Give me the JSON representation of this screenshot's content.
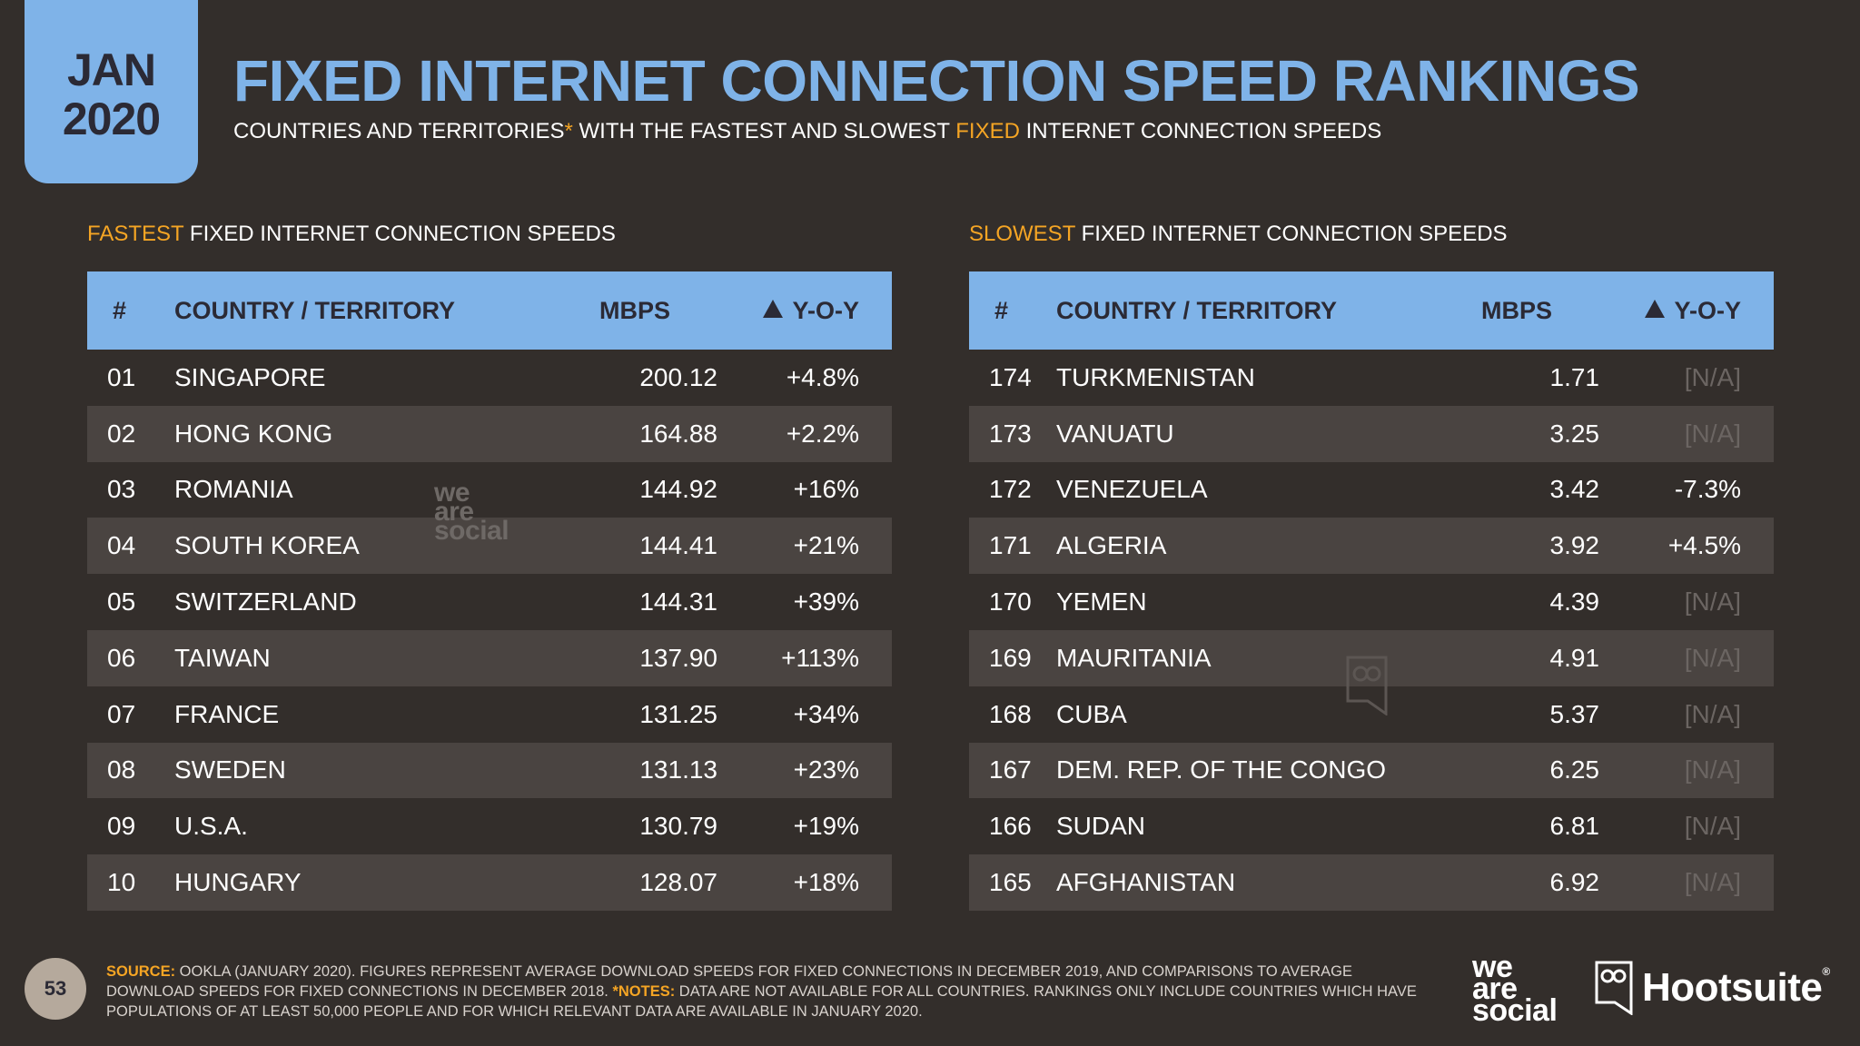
{
  "header": {
    "date_month": "JAN",
    "date_year": "2020",
    "title": "FIXED INTERNET CONNECTION SPEED RANKINGS",
    "subtitle_pre": "COUNTRIES AND TERRITORIES",
    "subtitle_ast": "*",
    "subtitle_mid": " WITH THE FASTEST AND SLOWEST ",
    "subtitle_hl": "FIXED",
    "subtitle_post": " INTERNET CONNECTION SPEEDS"
  },
  "fastest": {
    "title_hl": "FASTEST",
    "title_rest": " FIXED INTERNET CONNECTION SPEEDS",
    "headers": {
      "num": "#",
      "country": "COUNTRY / TERRITORY",
      "mbps": "MBPS",
      "yoy": "Y-O-Y"
    },
    "rows": [
      {
        "num": "01",
        "country": "SINGAPORE",
        "mbps": "200.12",
        "yoy": "+4.8%"
      },
      {
        "num": "02",
        "country": "HONG KONG",
        "mbps": "164.88",
        "yoy": "+2.2%"
      },
      {
        "num": "03",
        "country": "ROMANIA",
        "mbps": "144.92",
        "yoy": "+16%"
      },
      {
        "num": "04",
        "country": "SOUTH KOREA",
        "mbps": "144.41",
        "yoy": "+21%"
      },
      {
        "num": "05",
        "country": "SWITZERLAND",
        "mbps": "144.31",
        "yoy": "+39%"
      },
      {
        "num": "06",
        "country": "TAIWAN",
        "mbps": "137.90",
        "yoy": "+113%"
      },
      {
        "num": "07",
        "country": "FRANCE",
        "mbps": "131.25",
        "yoy": "+34%"
      },
      {
        "num": "08",
        "country": "SWEDEN",
        "mbps": "131.13",
        "yoy": "+23%"
      },
      {
        "num": "09",
        "country": "U.S.A.",
        "mbps": "130.79",
        "yoy": "+19%"
      },
      {
        "num": "10",
        "country": "HUNGARY",
        "mbps": "128.07",
        "yoy": "+18%"
      }
    ]
  },
  "slowest": {
    "title_hl": "SLOWEST",
    "title_rest": " FIXED INTERNET CONNECTION SPEEDS",
    "headers": {
      "num": "#",
      "country": "COUNTRY / TERRITORY",
      "mbps": "MBPS",
      "yoy": "Y-O-Y"
    },
    "rows": [
      {
        "num": "174",
        "country": "TURKMENISTAN",
        "mbps": "1.71",
        "yoy": "[N/A]"
      },
      {
        "num": "173",
        "country": "VANUATU",
        "mbps": "3.25",
        "yoy": "[N/A]"
      },
      {
        "num": "172",
        "country": "VENEZUELA",
        "mbps": "3.42",
        "yoy": "-7.3%"
      },
      {
        "num": "171",
        "country": "ALGERIA",
        "mbps": "3.92",
        "yoy": "+4.5%"
      },
      {
        "num": "170",
        "country": "YEMEN",
        "mbps": "4.39",
        "yoy": "[N/A]"
      },
      {
        "num": "169",
        "country": "MAURITANIA",
        "mbps": "4.91",
        "yoy": "[N/A]"
      },
      {
        "num": "168",
        "country": "CUBA",
        "mbps": "5.37",
        "yoy": "[N/A]"
      },
      {
        "num": "167",
        "country": "DEM. REP. OF THE CONGO",
        "mbps": "6.25",
        "yoy": "[N/A]"
      },
      {
        "num": "166",
        "country": "SUDAN",
        "mbps": "6.81",
        "yoy": "[N/A]"
      },
      {
        "num": "165",
        "country": "AFGHANISTAN",
        "mbps": "6.92",
        "yoy": "[N/A]"
      }
    ]
  },
  "footer": {
    "page": "53",
    "source_label": "SOURCE:",
    "source_text": " OOKLA (JANUARY 2020). FIGURES REPRESENT AVERAGE DOWNLOAD SPEEDS FOR FIXED CONNECTIONS IN DECEMBER 2019, AND COMPARISONS TO AVERAGE DOWNLOAD SPEEDS FOR FIXED CONNECTIONS IN DECEMBER 2018. ",
    "notes_label": "*NOTES:",
    "notes_text": " DATA ARE NOT AVAILABLE FOR ALL COUNTRIES. RANKINGS ONLY INCLUDE COUNTRIES WHICH HAVE POPULATIONS OF AT LEAST 50,000 PEOPLE AND FOR WHICH RELEVANT DATA ARE AVAILABLE IN JANUARY 2020.",
    "logo_we": "we",
    "logo_are": "are",
    "logo_social": "social",
    "logo_hootsuite": "Hootsuite",
    "logo_reg": "®"
  },
  "colors": {
    "background": "#332e2b",
    "accent_blue": "#7fb3e8",
    "accent_orange": "#f5a524",
    "row_shade": "#4a4441",
    "na_gray": "#6b6562"
  }
}
